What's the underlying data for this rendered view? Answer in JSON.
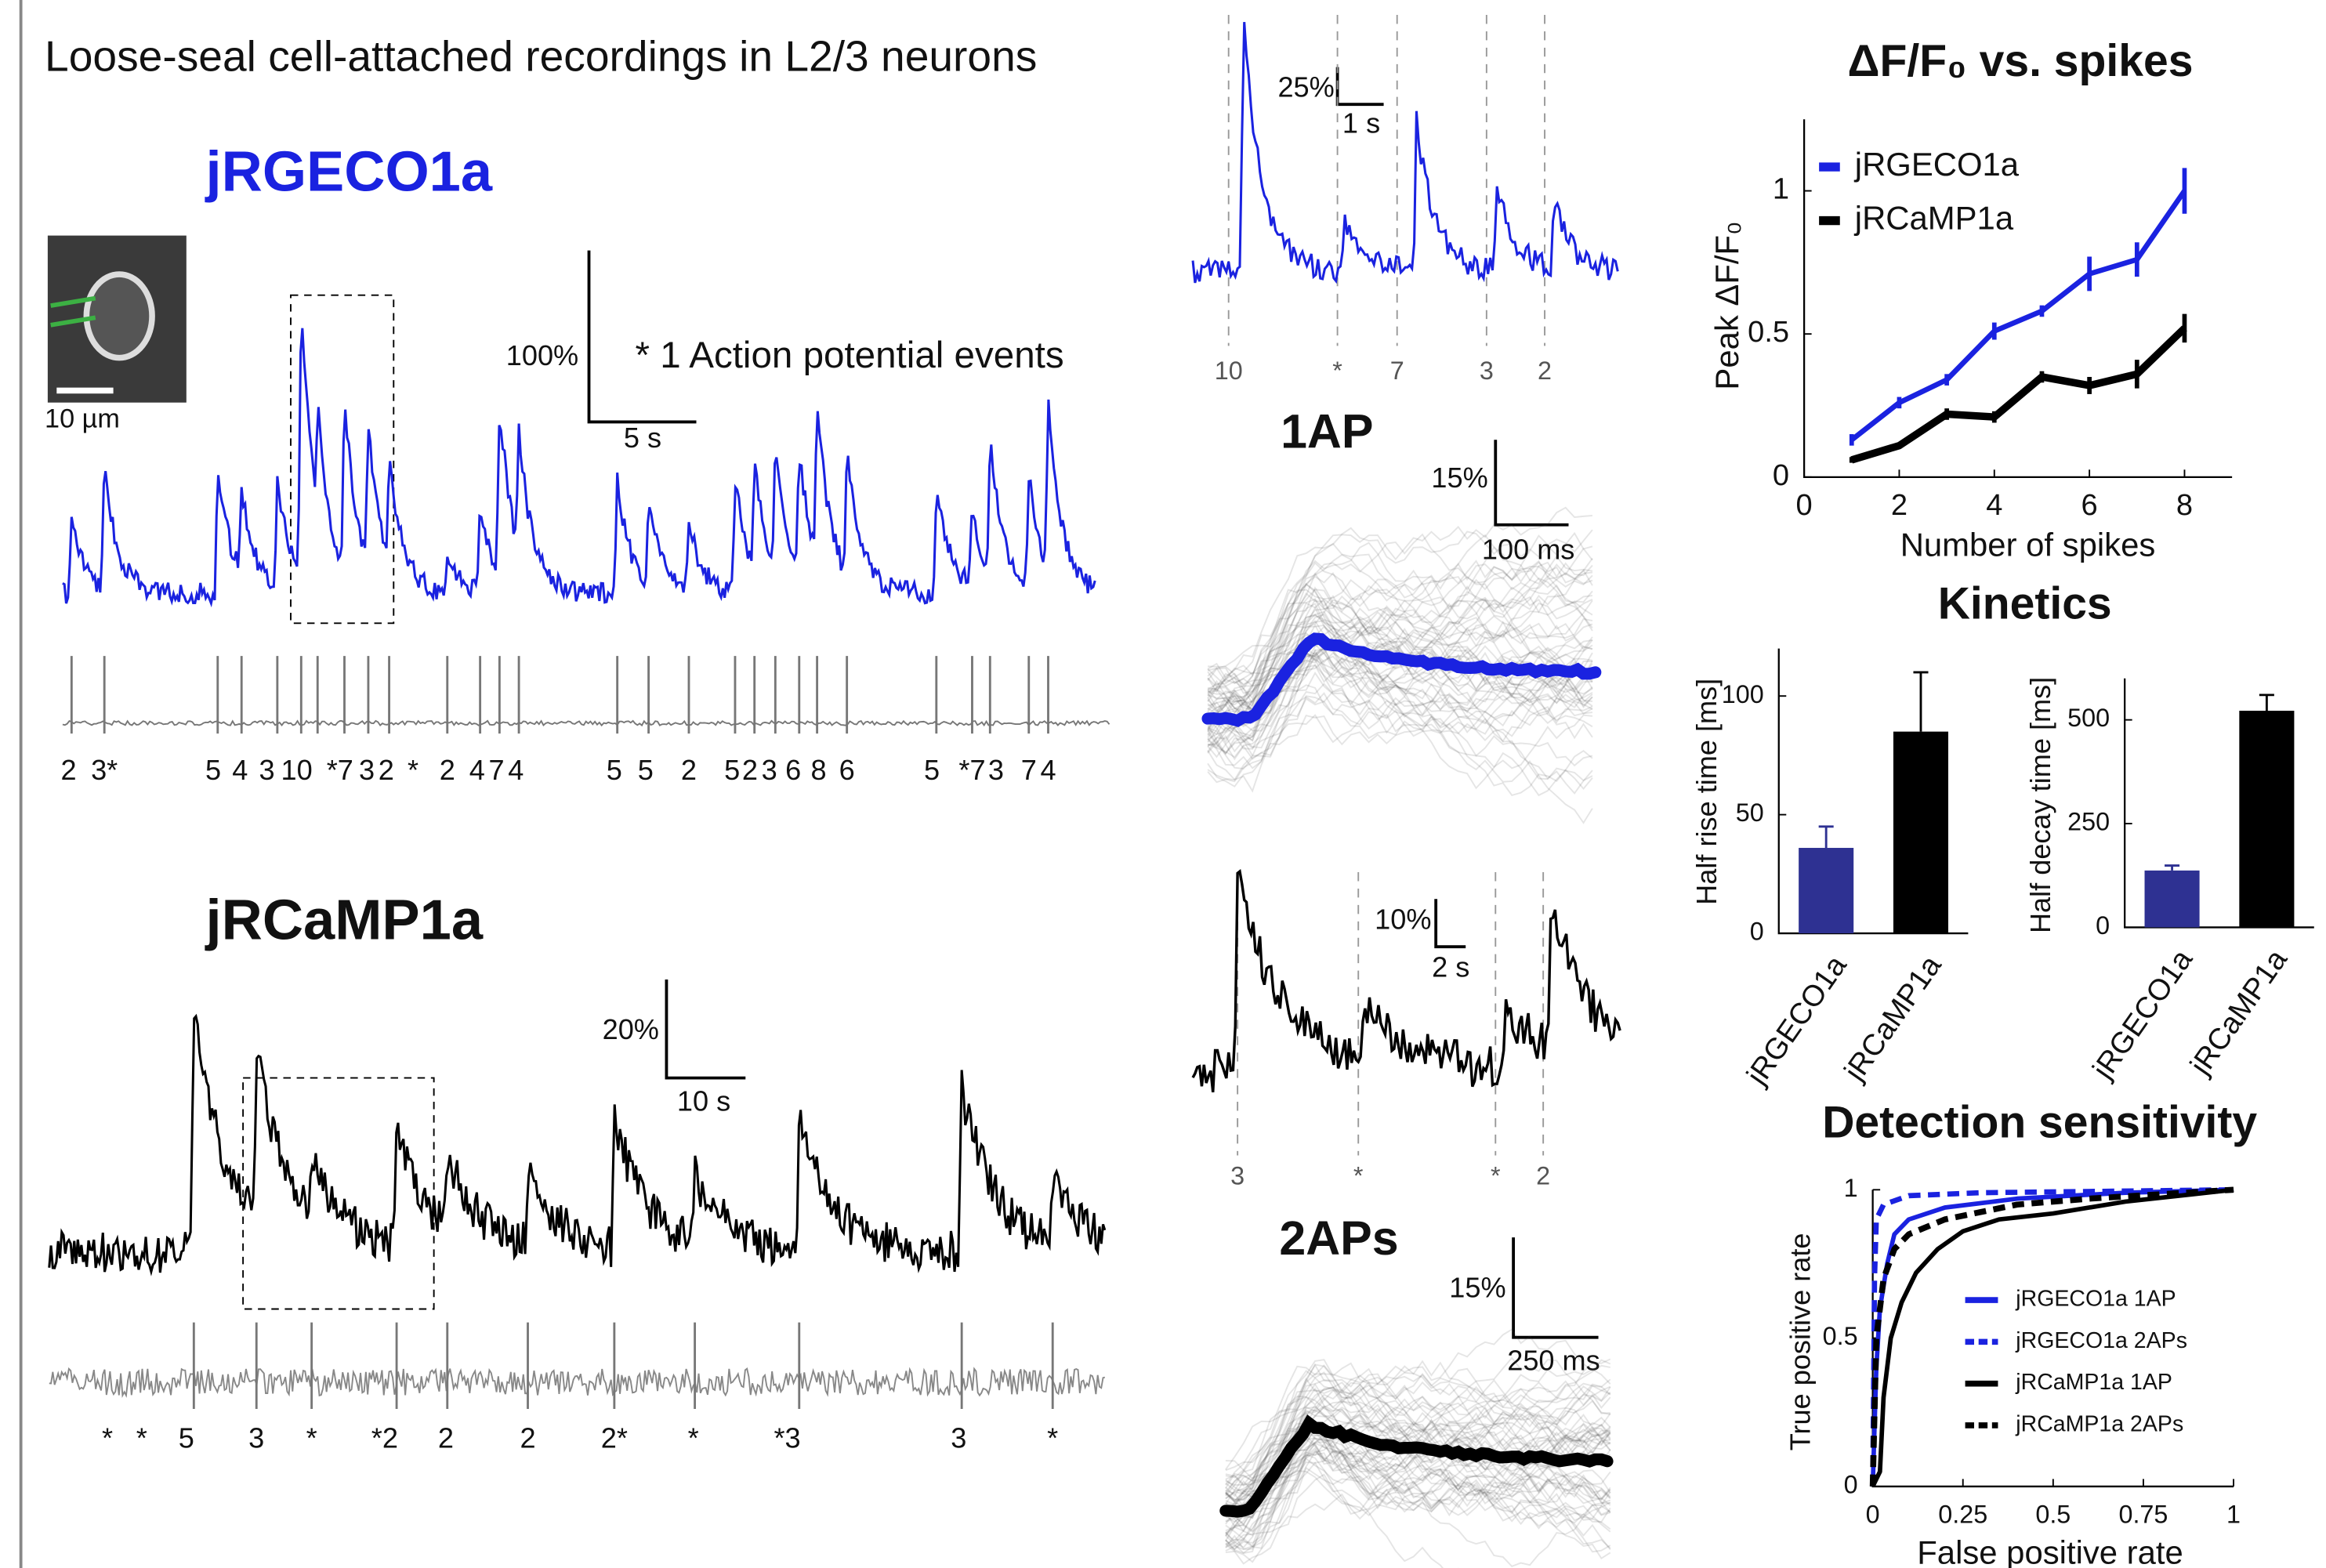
{
  "header": {
    "title": "Loose-seal cell-attached recordings in L2/3 neurons"
  },
  "panels": {
    "jrgeco": {
      "name": "jRGECO1a",
      "image_scale": "10 µm",
      "y_scale": "100%",
      "x_scale": "5 s",
      "note": "* 1 Action potential events",
      "spike_labels": [
        "2",
        "3*",
        "5",
        "4",
        "3",
        "10",
        "*7",
        "3",
        "2",
        "*",
        "2",
        "4",
        "7",
        "4",
        "5",
        "5",
        "2",
        "5",
        "2",
        "3",
        "6",
        "8",
        "6",
        "5",
        "*7",
        "3",
        "7",
        "4"
      ]
    },
    "jrcamp": {
      "name": "jRCaMP1a",
      "y_scale": "20%",
      "x_scale": "10 s",
      "spike_labels": [
        "*",
        "*",
        "5",
        "3",
        "*",
        "*2",
        "2",
        "2",
        "2*",
        "*",
        "*3",
        "3",
        "*"
      ]
    },
    "zoom_jrgeco": {
      "y_scale": "25%",
      "x_scale": "1 s",
      "spike_labels": [
        "10",
        "*",
        "7",
        "3",
        "2"
      ]
    },
    "ap1": {
      "title": "1AP",
      "y_scale": "15%",
      "x_scale": "100 ms"
    },
    "zoom_jrcamp": {
      "y_scale": "10%",
      "x_scale": "2 s",
      "spike_labels": [
        "3",
        "*",
        "*",
        "2"
      ]
    },
    "ap2": {
      "title": "2APs",
      "y_scale": "15%",
      "x_scale": "250 ms"
    }
  },
  "chart_data": [
    {
      "type": "line",
      "title": "ΔF/F₀ vs. spikes",
      "x": [
        1,
        2,
        3,
        4,
        5,
        6,
        7,
        8
      ],
      "series": [
        {
          "name": "jRGECO1a",
          "color": "#1a22e0",
          "values": [
            0.13,
            0.26,
            0.34,
            0.51,
            0.58,
            0.71,
            0.76,
            1.0
          ],
          "errors": [
            0.02,
            0.02,
            0.02,
            0.03,
            0.02,
            0.06,
            0.06,
            0.08
          ]
        },
        {
          "name": "jRCaMP1a",
          "color": "#000000",
          "values": [
            0.06,
            0.11,
            0.22,
            0.21,
            0.35,
            0.32,
            0.36,
            0.52
          ],
          "errors": [
            0.01,
            0.01,
            0.02,
            0.02,
            0.02,
            0.03,
            0.05,
            0.05
          ]
        }
      ],
      "xlabel": "Number of spikes",
      "ylabel": "Peak ΔF/F₀",
      "xlim": [
        0,
        9
      ],
      "xticks": [
        0,
        2,
        4,
        6,
        8
      ],
      "ylim": [
        0,
        1.25
      ],
      "yticks": [
        0,
        0.5,
        1
      ],
      "legend": "upper left"
    },
    {
      "type": "bar",
      "title": "Kinetics",
      "categories": [
        "jRGECO1a",
        "jRCaMP1a"
      ],
      "values": [
        36,
        85
      ],
      "errors": [
        9,
        25
      ],
      "colors": [
        "#2e3192",
        "#000000"
      ],
      "ylabel": "Half rise time [ms]",
      "ylim": [
        0,
        120
      ],
      "yticks": [
        0,
        50,
        100
      ]
    },
    {
      "type": "bar",
      "categories": [
        "jRGECO1a",
        "jRCaMP1a"
      ],
      "values": [
        137,
        522
      ],
      "errors": [
        12,
        38
      ],
      "colors": [
        "#2e3192",
        "#000000"
      ],
      "ylabel": "Half decay time [ms]",
      "ylim": [
        0,
        600
      ],
      "yticks": [
        0,
        250,
        500
      ]
    },
    {
      "type": "line",
      "title": "Detection sensitivity",
      "series": [
        {
          "name": "jRGECO1a 1AP",
          "color": "#1a22e0",
          "linestyle": "solid",
          "x": [
            0,
            0.01,
            0.02,
            0.04,
            0.06,
            0.1,
            0.2,
            0.4,
            0.7,
            1
          ],
          "values": [
            0,
            0.4,
            0.6,
            0.75,
            0.85,
            0.9,
            0.94,
            0.97,
            0.99,
            1
          ]
        },
        {
          "name": "jRGECO1a 2APs",
          "color": "#1a22e0",
          "linestyle": "dashed",
          "x": [
            0,
            0.005,
            0.01,
            0.03,
            0.1,
            0.3,
            1
          ],
          "values": [
            0,
            0.7,
            0.9,
            0.95,
            0.98,
            0.99,
            1
          ]
        },
        {
          "name": "jRCaMP1a 1AP",
          "color": "#000000",
          "linestyle": "solid",
          "x": [
            0,
            0.02,
            0.03,
            0.05,
            0.08,
            0.12,
            0.18,
            0.25,
            0.35,
            0.5,
            0.7,
            1
          ],
          "values": [
            0,
            0.05,
            0.3,
            0.5,
            0.62,
            0.72,
            0.8,
            0.86,
            0.9,
            0.92,
            0.96,
            1
          ]
        },
        {
          "name": "jRCaMP1a 2APs",
          "color": "#000000",
          "linestyle": "dashed",
          "x": [
            0,
            0.01,
            0.03,
            0.06,
            0.1,
            0.2,
            0.4,
            0.6,
            1
          ],
          "values": [
            0,
            0.5,
            0.7,
            0.8,
            0.85,
            0.9,
            0.95,
            0.97,
            1
          ]
        }
      ],
      "xlabel": "False positive rate",
      "ylabel": "True positive rate",
      "xlim": [
        0,
        1
      ],
      "xticks": [
        0,
        0.25,
        0.5,
        0.75,
        1
      ],
      "ylim": [
        0,
        1
      ],
      "yticks": [
        0,
        0.5,
        1
      ],
      "legend": "lower right"
    }
  ]
}
